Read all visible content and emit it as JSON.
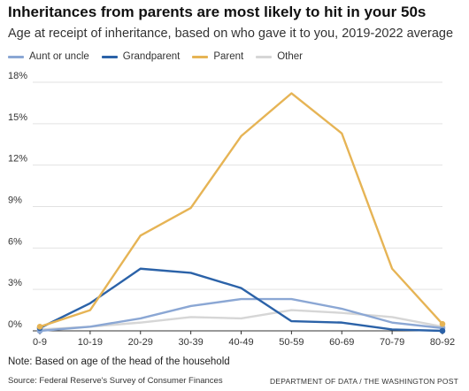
{
  "header": {
    "title": "Inheritances from parents are most likely to hit in your 50s",
    "subtitle": "Age at receipt of inheritance, based on who gave it to you, 2019-2022 average"
  },
  "legend": [
    {
      "label": "Aunt or uncle",
      "color": "#8ba7d4"
    },
    {
      "label": "Grandparent",
      "color": "#2b62a8"
    },
    {
      "label": "Parent",
      "color": "#e6b455"
    },
    {
      "label": "Other",
      "color": "#d6d6d6"
    }
  ],
  "footer": {
    "note": "Note: Based on age of the head of the household",
    "source": "Source: Federal Reserve's Survey of Consumer Finances",
    "credit": "DEPARTMENT OF DATA / THE WASHINGTON POST"
  },
  "chart_data": {
    "type": "line",
    "title": "Inheritances from parents are most likely to hit in your 50s",
    "subtitle": "Age at receipt of inheritance, based on who gave it to you, 2019-2022 average",
    "categories": [
      "0-9",
      "10-19",
      "20-29",
      "30-39",
      "40-49",
      "50-59",
      "60-69",
      "70-79",
      "80-92"
    ],
    "y_ticks": [
      "0%",
      "3%",
      "6%",
      "9%",
      "12%",
      "15%",
      "18%"
    ],
    "y_tick_values": [
      0,
      3,
      6,
      9,
      12,
      15,
      18
    ],
    "ylim": [
      0,
      18
    ],
    "grid": true,
    "legend_position": "top-left",
    "series": [
      {
        "name": "Other",
        "color": "#d6d6d6",
        "values": [
          0.1,
          0.3,
          0.6,
          1.0,
          0.9,
          1.5,
          1.3,
          1.0,
          0.3
        ]
      },
      {
        "name": "Aunt or uncle",
        "color": "#8ba7d4",
        "values": [
          0.0,
          0.3,
          0.9,
          1.8,
          2.3,
          2.3,
          1.6,
          0.6,
          0.2
        ]
      },
      {
        "name": "Grandparent",
        "color": "#2b62a8",
        "values": [
          0.2,
          2.0,
          4.5,
          4.2,
          3.1,
          0.7,
          0.6,
          0.1,
          0.0
        ]
      },
      {
        "name": "Parent",
        "color": "#e6b455",
        "values": [
          0.3,
          1.5,
          6.9,
          8.9,
          14.1,
          17.2,
          14.3,
          4.5,
          0.5
        ]
      }
    ]
  }
}
